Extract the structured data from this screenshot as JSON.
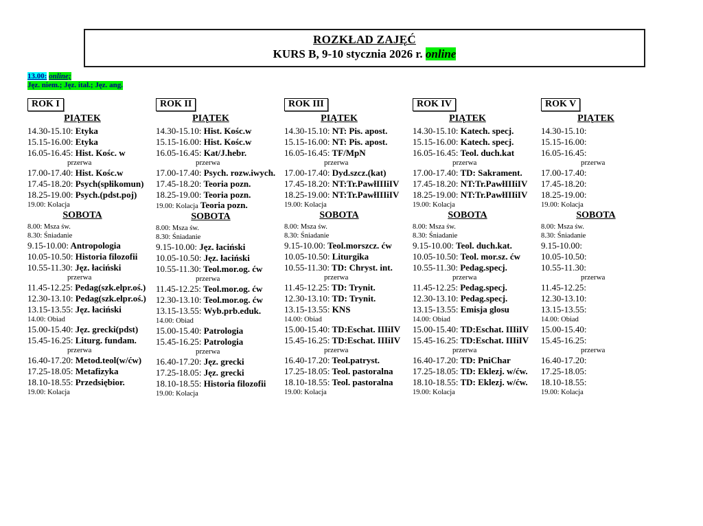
{
  "header": {
    "title": "ROZKŁAD ZAJĘĆ",
    "subtitle_prefix": "KURS B, 9-10 stycznia 2026 r. ",
    "subtitle_highlight": "online"
  },
  "note": {
    "line1_time": "13.00:",
    "line1_online": "online;",
    "line2": "Jęz. niem.; Jęz. ital.; Jęz. ang.",
    "text_color": "#00008b",
    "highlight_cyan": "#00ffff",
    "highlight_green": "#00ef00"
  },
  "columns": [
    {
      "label": "ROK I",
      "days": [
        {
          "name": "PIĄTEK",
          "entries": [
            {
              "kind": "class",
              "t": "14.30-15.10:",
              "s": "Etyka"
            },
            {
              "kind": "class",
              "t": "15.15-16.00:",
              "s": "Etyka"
            },
            {
              "kind": "class",
              "t": "16.05-16.45:",
              "s": "Hist. Kośc. w"
            },
            {
              "kind": "break",
              "t": "",
              "s": "przerwa"
            },
            {
              "kind": "class",
              "t": "17.00-17.40:",
              "s": "Hist. Kośc.w"
            },
            {
              "kind": "class",
              "t": "17.45-18.20:",
              "s": "Psych(spłikomun)"
            },
            {
              "kind": "class",
              "t": "18.25-19.00:",
              "s": "Psych.(pdst.poj)"
            },
            {
              "kind": "meal",
              "t": "19.00: Kolacja",
              "s": ""
            }
          ]
        },
        {
          "name": "SOBOTA",
          "entries": [
            {
              "kind": "meal",
              "t": "8.00: Msza św.",
              "s": ""
            },
            {
              "kind": "meal",
              "t": "8.30: Śniadanie",
              "s": ""
            },
            {
              "kind": "class",
              "t": "9.15-10.00:",
              "s": "Antropologia"
            },
            {
              "kind": "class",
              "t": "10.05-10.50:",
              "s": "Historia filozofii"
            },
            {
              "kind": "class",
              "t": "10.55-11.30:",
              "s": "Jęz. łaciński"
            },
            {
              "kind": "break",
              "t": "",
              "s": "przerwa"
            },
            {
              "kind": "class",
              "t": "11.45-12.25:",
              "s": "Pedag(szk.elpr.oś.)"
            },
            {
              "kind": "class",
              "t": "12.30-13.10:",
              "s": "Pedag(szk.elpr.oś.)"
            },
            {
              "kind": "class",
              "t": "13.15-13.55:",
              "s": "Jęz. łaciński"
            },
            {
              "kind": "meal",
              "t": "14.00: Obiad",
              "s": ""
            },
            {
              "kind": "class",
              "t": "15.00-15.40:",
              "s": "Jęz. grecki(pdst)"
            },
            {
              "kind": "class",
              "t": "15.45-16.25:",
              "s": "Liturg. fundam."
            },
            {
              "kind": "break",
              "t": "",
              "s": "przerwa"
            },
            {
              "kind": "class",
              "t": "16.40-17.20:",
              "s": "Metod.teol(w/ćw)"
            },
            {
              "kind": "class",
              "t": "17.25-18.05:",
              "s": "Metafizyka"
            },
            {
              "kind": "class",
              "t": "18.10-18.55:",
              "s": "Przedsiębior."
            },
            {
              "kind": "meal",
              "t": "19.00: Kolacja",
              "s": ""
            }
          ]
        }
      ]
    },
    {
      "label": "ROK II",
      "days": [
        {
          "name": "PIĄTEK",
          "entries": [
            {
              "kind": "class",
              "t": "14.30-15.10:",
              "s": "Hist. Kośc.w"
            },
            {
              "kind": "class",
              "t": "15.15-16.00:",
              "s": "Hist. Kośc.w"
            },
            {
              "kind": "class",
              "t": "16.05-16.45:",
              "s": "Kat/J.hebr."
            },
            {
              "kind": "break",
              "t": "",
              "s": "przerwa"
            },
            {
              "kind": "class",
              "t": "17.00-17.40:",
              "s": "Psych. rozw.iwych."
            },
            {
              "kind": "class",
              "t": "17.45-18.20:",
              "s": "Teoria pozn."
            },
            {
              "kind": "class",
              "t": "18.25-19.00:",
              "s": "Teoria pozn."
            },
            {
              "kind": "meal",
              "t": "19.00: Kolacja",
              "s": "Teoria pozn."
            }
          ]
        },
        {
          "name": "SOBOTA",
          "entries": [
            {
              "kind": "meal",
              "t": "8.00: Msza św.",
              "s": ""
            },
            {
              "kind": "meal",
              "t": "8.30: Śniadanie",
              "s": ""
            },
            {
              "kind": "class",
              "t": "9.15-10.00:",
              "s": "Jęz. łaciński"
            },
            {
              "kind": "class",
              "t": "10.05-10.50:",
              "s": "Jęz. łaciński"
            },
            {
              "kind": "class",
              "t": "10.55-11.30:",
              "s": "Teol.mor.og. ćw"
            },
            {
              "kind": "break",
              "t": "",
              "s": "przerwa"
            },
            {
              "kind": "class",
              "t": "11.45-12.25:",
              "s": "Teol.mor.og. ćw"
            },
            {
              "kind": "class",
              "t": "12.30-13.10:",
              "s": "Teol.mor.og. ćw"
            },
            {
              "kind": "class",
              "t": "13.15-13.55:",
              "s": "Wyb.prb.eduk."
            },
            {
              "kind": "meal",
              "t": "14.00: Obiad",
              "s": ""
            },
            {
              "kind": "class",
              "t": "15.00-15.40:",
              "s": "Patrologia"
            },
            {
              "kind": "class",
              "t": "15.45-16.25:",
              "s": "Patrologia"
            },
            {
              "kind": "break",
              "t": "",
              "s": "przerwa"
            },
            {
              "kind": "class",
              "t": "16.40-17.20:",
              "s": "Jęz. grecki"
            },
            {
              "kind": "class",
              "t": "17.25-18.05:",
              "s": "Jęz. grecki"
            },
            {
              "kind": "class",
              "t": "18.10-18.55:",
              "s": "Historia filozofii"
            },
            {
              "kind": "meal",
              "t": "19.00: Kolacja",
              "s": ""
            }
          ]
        }
      ]
    },
    {
      "label": "ROK III",
      "days": [
        {
          "name": "PIĄTEK",
          "entries": [
            {
              "kind": "class",
              "t": "14.30-15.10:",
              "s": "NT: Pis. apost."
            },
            {
              "kind": "class",
              "t": "15.15-16.00:",
              "s": "NT: Pis. apost."
            },
            {
              "kind": "class",
              "t": "16.05-16.45:",
              "s": "TF/MpN"
            },
            {
              "kind": "break",
              "t": "",
              "s": "przerwa"
            },
            {
              "kind": "class",
              "t": "17.00-17.40:",
              "s": "Dyd.szcz.(kat)"
            },
            {
              "kind": "class",
              "t": "17.45-18.20:",
              "s": "NT:Tr.PawłIIIiIV"
            },
            {
              "kind": "class",
              "t": "18.25-19.00:",
              "s": "NT:Tr.PawłIIIiIV"
            },
            {
              "kind": "meal",
              "t": "19.00: Kolacja",
              "s": ""
            }
          ]
        },
        {
          "name": "SOBOTA",
          "entries": [
            {
              "kind": "meal",
              "t": "8.00: Msza św.",
              "s": ""
            },
            {
              "kind": "meal",
              "t": "8.30: Śniadanie",
              "s": ""
            },
            {
              "kind": "class",
              "t": "9.15-10.00:",
              "s": "Teol.morszcz. ćw"
            },
            {
              "kind": "class",
              "t": "10.05-10.50:",
              "s": "Liturgika"
            },
            {
              "kind": "class",
              "t": "10.55-11.30:",
              "s": "TD: Chryst. int."
            },
            {
              "kind": "break",
              "t": "",
              "s": "przerwa"
            },
            {
              "kind": "class",
              "t": "11.45-12.25:",
              "s": "TD: Trynit."
            },
            {
              "kind": "class",
              "t": "12.30-13.10:",
              "s": "TD: Trynit."
            },
            {
              "kind": "class",
              "t": "13.15-13.55:",
              "s": "KNS"
            },
            {
              "kind": "meal",
              "t": "14.00: Obiad",
              "s": ""
            },
            {
              "kind": "class",
              "t": "15.00-15.40:",
              "s": "TD:Eschat. IIIiIV"
            },
            {
              "kind": "class",
              "t": "15.45-16.25:",
              "s": "TD:Eschat. IIIiIV"
            },
            {
              "kind": "break",
              "t": "",
              "s": "przerwa"
            },
            {
              "kind": "class",
              "t": "16.40-17.20:",
              "s": "Teol.patryst."
            },
            {
              "kind": "class",
              "t": "17.25-18.05:",
              "s": "Teol. pastoralna"
            },
            {
              "kind": "class",
              "t": "18.10-18.55:",
              "s": "Teol. pastoralna"
            },
            {
              "kind": "meal",
              "t": "19.00: Kolacja",
              "s": ""
            }
          ]
        }
      ]
    },
    {
      "label": "ROK IV",
      "days": [
        {
          "name": "PIĄTEK",
          "entries": [
            {
              "kind": "class",
              "t": "14.30-15.10:",
              "s": "Katech. specj."
            },
            {
              "kind": "class",
              "t": "15.15-16.00:",
              "s": "Katech. specj."
            },
            {
              "kind": "class",
              "t": "16.05-16.45:",
              "s": "Teol. duch.kat"
            },
            {
              "kind": "break",
              "t": "",
              "s": "przerwa"
            },
            {
              "kind": "class",
              "t": "17.00-17.40:",
              "s": "TD: Sakrament."
            },
            {
              "kind": "class",
              "t": "17.45-18.20:",
              "s": "NT:Tr.PawłIIIiIV"
            },
            {
              "kind": "class",
              "t": "18.25-19.00:",
              "s": "NT:Tr.PawłIIIiIV"
            },
            {
              "kind": "meal",
              "t": "19.00: Kolacja",
              "s": ""
            }
          ]
        },
        {
          "name": "SOBOTA",
          "entries": [
            {
              "kind": "meal",
              "t": "8.00: Msza św.",
              "s": ""
            },
            {
              "kind": "meal",
              "t": "8.30: Śniadanie",
              "s": ""
            },
            {
              "kind": "class",
              "t": "9.15-10.00:",
              "s": "Teol. duch.kat."
            },
            {
              "kind": "class",
              "t": "10.05-10.50:",
              "s": "Teol. mor.sz. ćw"
            },
            {
              "kind": "class",
              "t": "10.55-11.30:",
              "s": "Pedag.specj."
            },
            {
              "kind": "break",
              "t": "",
              "s": "przerwa"
            },
            {
              "kind": "class",
              "t": "11.45-12.25:",
              "s": "Pedag.specj."
            },
            {
              "kind": "class",
              "t": "12.30-13.10:",
              "s": "Pedag.specj."
            },
            {
              "kind": "class",
              "t": "13.15-13.55:",
              "s": "Emisja glosu"
            },
            {
              "kind": "meal",
              "t": "14.00: Obiad",
              "s": ""
            },
            {
              "kind": "class",
              "t": "15.00-15.40:",
              "s": "TD:Eschat. IIIiIV"
            },
            {
              "kind": "class",
              "t": "15.45-16.25:",
              "s": "TD:Eschat. IIIiIV"
            },
            {
              "kind": "break",
              "t": "",
              "s": "przerwa"
            },
            {
              "kind": "class",
              "t": "16.40-17.20:",
              "s": "TD: PniChar"
            },
            {
              "kind": "class",
              "t": "17.25-18.05:",
              "s": "TD: Eklezj. w/ćw."
            },
            {
              "kind": "class",
              "t": "18.10-18.55:",
              "s": "TD: Eklezj. w/ćw."
            },
            {
              "kind": "meal",
              "t": "19.00: Kolacja",
              "s": ""
            }
          ]
        }
      ]
    },
    {
      "label": "ROK V",
      "days": [
        {
          "name": "PIĄTEK",
          "entries": [
            {
              "kind": "class",
              "t": "14.30-15.10:",
              "s": ""
            },
            {
              "kind": "class",
              "t": "15.15-16.00:",
              "s": ""
            },
            {
              "kind": "class",
              "t": "16.05-16.45:",
              "s": ""
            },
            {
              "kind": "break",
              "t": "",
              "s": "przerwa"
            },
            {
              "kind": "class",
              "t": "17.00-17.40:",
              "s": ""
            },
            {
              "kind": "class",
              "t": "17.45-18.20:",
              "s": ""
            },
            {
              "kind": "class",
              "t": "18.25-19.00:",
              "s": ""
            },
            {
              "kind": "meal",
              "t": "19.00: Kolacja",
              "s": ""
            }
          ]
        },
        {
          "name": "SOBOTA",
          "entries": [
            {
              "kind": "meal",
              "t": "8.00: Msza św.",
              "s": ""
            },
            {
              "kind": "meal",
              "t": "8.30: Śniadanie",
              "s": ""
            },
            {
              "kind": "class",
              "t": "9.15-10.00:",
              "s": ""
            },
            {
              "kind": "class",
              "t": "10.05-10.50:",
              "s": ""
            },
            {
              "kind": "class",
              "t": "10.55-11.30:",
              "s": ""
            },
            {
              "kind": "break",
              "t": "",
              "s": "przerwa"
            },
            {
              "kind": "class",
              "t": "11.45-12.25:",
              "s": ""
            },
            {
              "kind": "class",
              "t": "12.30-13.10:",
              "s": ""
            },
            {
              "kind": "class",
              "t": "13.15-13.55:",
              "s": ""
            },
            {
              "kind": "meal",
              "t": "14.00: Obiad",
              "s": ""
            },
            {
              "kind": "class",
              "t": "15.00-15.40:",
              "s": ""
            },
            {
              "kind": "class",
              "t": "15.45-16.25:",
              "s": ""
            },
            {
              "kind": "break",
              "t": "",
              "s": "przerwa"
            },
            {
              "kind": "class",
              "t": "16.40-17.20:",
              "s": ""
            },
            {
              "kind": "class",
              "t": "17.25-18.05:",
              "s": ""
            },
            {
              "kind": "class",
              "t": "18.10-18.55:",
              "s": ""
            },
            {
              "kind": "meal",
              "t": "19.00: Kolacja",
              "s": ""
            }
          ]
        }
      ]
    }
  ]
}
